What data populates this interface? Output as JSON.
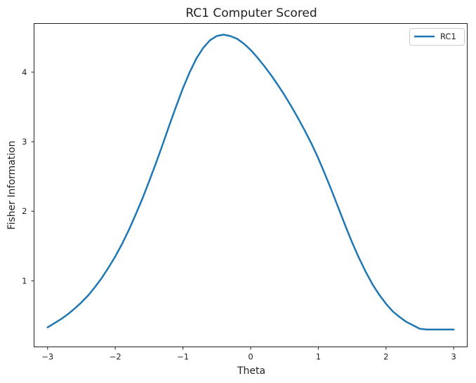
{
  "chart_data": {
    "type": "line",
    "title": "RC1 Computer Scored",
    "xlabel": "Theta",
    "ylabel": "Fisher Information",
    "xlim": [
      -3.2,
      3.2
    ],
    "ylim": [
      0.05,
      4.7
    ],
    "xticks": [
      -3,
      -2,
      -1,
      0,
      1,
      2,
      3
    ],
    "xtick_labels": [
      "−3",
      "−2",
      "−1",
      "0",
      "1",
      "2",
      "3"
    ],
    "yticks": [
      1,
      2,
      3,
      4
    ],
    "ytick_labels": [
      "1",
      "2",
      "3",
      "4"
    ],
    "grid": false,
    "legend_position": "top-right",
    "series": [
      {
        "name": "RC1",
        "color": "#1f77b4",
        "x": [
          -3.0,
          -2.9,
          -2.8,
          -2.7,
          -2.6,
          -2.5,
          -2.4,
          -2.3,
          -2.2,
          -2.1,
          -2.0,
          -1.9,
          -1.8,
          -1.7,
          -1.6,
          -1.5,
          -1.4,
          -1.3,
          -1.2,
          -1.1,
          -1.0,
          -0.9,
          -0.8,
          -0.7,
          -0.6,
          -0.5,
          -0.4,
          -0.3,
          -0.2,
          -0.1,
          0.0,
          0.1,
          0.2,
          0.3,
          0.4,
          0.5,
          0.6,
          0.7,
          0.8,
          0.9,
          1.0,
          1.1,
          1.2,
          1.3,
          1.4,
          1.5,
          1.6,
          1.7,
          1.8,
          1.9,
          2.0,
          2.1,
          2.2,
          2.3,
          2.4,
          2.5,
          2.6,
          2.7,
          2.8,
          2.9,
          3.0
        ],
        "y": [
          0.33,
          0.39,
          0.45,
          0.52,
          0.6,
          0.69,
          0.79,
          0.91,
          1.04,
          1.19,
          1.35,
          1.53,
          1.73,
          1.95,
          2.18,
          2.43,
          2.69,
          2.96,
          3.24,
          3.51,
          3.77,
          4.0,
          4.2,
          4.35,
          4.46,
          4.52,
          4.54,
          4.52,
          4.48,
          4.41,
          4.32,
          4.21,
          4.09,
          3.96,
          3.82,
          3.67,
          3.51,
          3.34,
          3.16,
          2.97,
          2.76,
          2.53,
          2.29,
          2.04,
          1.79,
          1.55,
          1.33,
          1.13,
          0.95,
          0.8,
          0.67,
          0.56,
          0.48,
          0.41,
          0.36,
          0.31,
          0.3,
          0.3,
          0.3,
          0.3,
          0.3
        ]
      }
    ]
  }
}
